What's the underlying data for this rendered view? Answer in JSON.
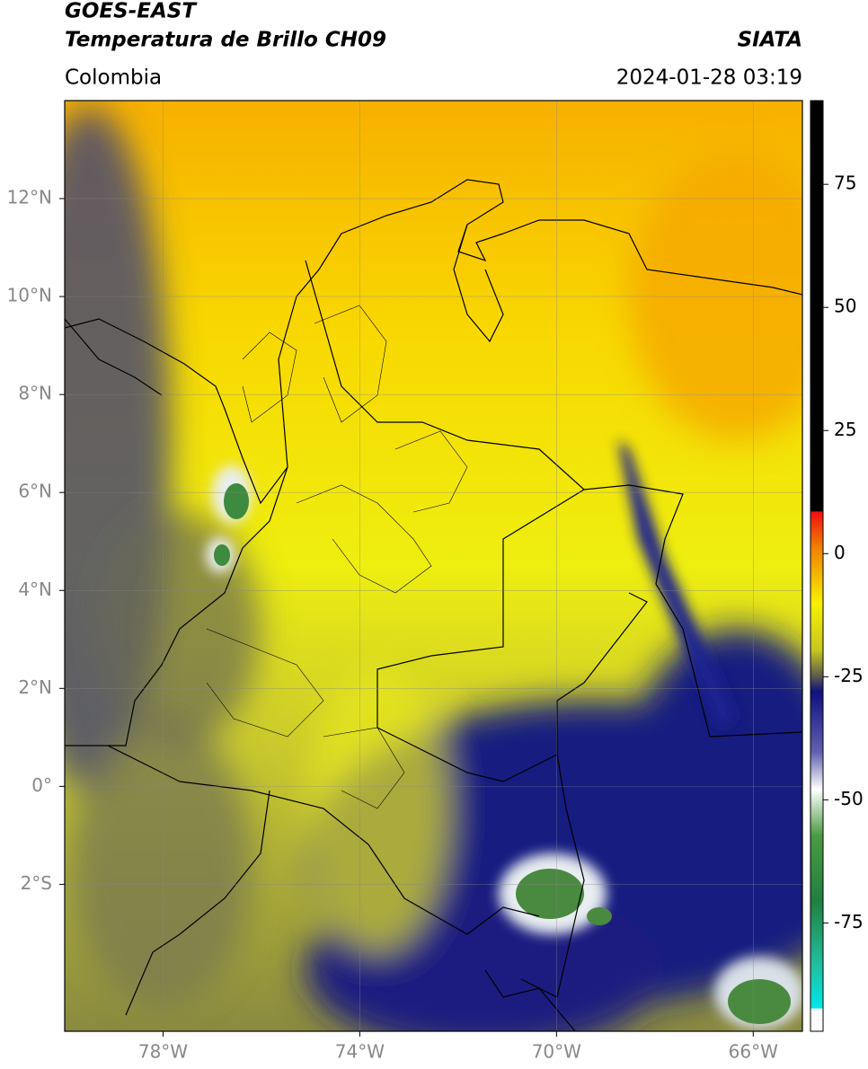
{
  "header": {
    "title": "GOES-EAST",
    "subtitle": "Temperatura de Brillo CH09",
    "source": "SIATA",
    "region": "Colombia",
    "datetime": "2024-01-28 03:19"
  },
  "map": {
    "lon_range": [
      -80,
      -65
    ],
    "lat_range": [
      -5,
      14
    ],
    "lat_ticks": [
      {
        "value": 12,
        "label": "12°N"
      },
      {
        "value": 10,
        "label": "10°N"
      },
      {
        "value": 8,
        "label": "8°N"
      },
      {
        "value": 6,
        "label": "6°N"
      },
      {
        "value": 4,
        "label": "4°N"
      },
      {
        "value": 2,
        "label": "2°N"
      },
      {
        "value": 0,
        "label": "0°"
      },
      {
        "value": -2,
        "label": "2°S"
      }
    ],
    "lon_ticks": [
      {
        "value": -78,
        "label": "78°W"
      },
      {
        "value": -74,
        "label": "74°W"
      },
      {
        "value": -70,
        "label": "70°W"
      },
      {
        "value": -66,
        "label": "66°W"
      }
    ],
    "grid": true
  },
  "colorbar": {
    "range": [
      -97,
      92
    ],
    "ticks": [
      75,
      50,
      25,
      0,
      -25,
      -50,
      -75
    ]
  }
}
